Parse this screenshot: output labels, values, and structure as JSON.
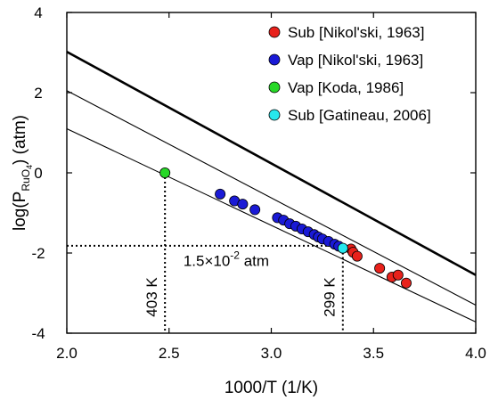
{
  "chart_data": {
    "type": "scatter",
    "xlabel": "1000/T (1/K)",
    "ylabel": "log(P",
    "ylabel_sub": "RuO",
    "ylabel_sub2": "4",
    "ylabel_tail": ") (atm)",
    "xlim": [
      2.0,
      4.0
    ],
    "ylim": [
      -4,
      4
    ],
    "xticks": [
      "2.0",
      "2.5",
      "3.0",
      "3.5",
      "4.0"
    ],
    "yticks": [
      "-4",
      "-2",
      "0",
      "2",
      "4"
    ],
    "grid": false,
    "legend_position": "top-right",
    "series": [
      {
        "name": "Sub [Nikol'ski, 1963]",
        "color": "#e8211b",
        "points": [
          [
            3.39,
            -1.9
          ],
          [
            3.4,
            -1.98
          ],
          [
            3.42,
            -2.08
          ],
          [
            3.53,
            -2.38
          ],
          [
            3.59,
            -2.6
          ],
          [
            3.62,
            -2.55
          ],
          [
            3.66,
            -2.75
          ]
        ]
      },
      {
        "name": "Vap [Nikol'ski, 1963]",
        "color": "#1a1ad6",
        "points": [
          [
            2.75,
            -0.53
          ],
          [
            2.82,
            -0.7
          ],
          [
            2.86,
            -0.78
          ],
          [
            2.92,
            -0.92
          ],
          [
            3.03,
            -1.12
          ],
          [
            3.06,
            -1.18
          ],
          [
            3.09,
            -1.27
          ],
          [
            3.12,
            -1.33
          ],
          [
            3.15,
            -1.4
          ],
          [
            3.18,
            -1.47
          ],
          [
            3.21,
            -1.54
          ],
          [
            3.23,
            -1.6
          ],
          [
            3.25,
            -1.65
          ],
          [
            3.28,
            -1.71
          ],
          [
            3.31,
            -1.78
          ],
          [
            3.33,
            -1.83
          ]
        ]
      },
      {
        "name": "Vap [Koda, 1986]",
        "color": "#27d827",
        "points": [
          [
            2.48,
            0.0
          ]
        ]
      },
      {
        "name": "Sub [Gatineau, 2006]",
        "color": "#27e8ee",
        "points": [
          [
            3.35,
            -1.88
          ]
        ]
      }
    ],
    "lines": [
      {
        "style": "thick",
        "from": [
          2.0,
          3.02
        ],
        "to": [
          4.0,
          -2.55
        ]
      },
      {
        "style": "thin",
        "from": [
          2.0,
          2.05
        ],
        "to": [
          4.0,
          -3.3
        ]
      },
      {
        "style": "thin",
        "from": [
          2.0,
          1.1
        ],
        "to": [
          4.0,
          -3.72
        ]
      }
    ],
    "guides": [
      {
        "from": [
          2.0,
          -1.82
        ],
        "to": [
          3.35,
          -1.82
        ]
      },
      {
        "from": [
          2.48,
          0.0
        ],
        "to": [
          2.48,
          -4
        ]
      },
      {
        "from": [
          3.35,
          -1.88
        ],
        "to": [
          3.35,
          -4
        ]
      }
    ],
    "annotations": [
      {
        "text": "1.5×10",
        "sup": "-2",
        "tail": " atm",
        "x": 2.57,
        "y": -2.32
      },
      {
        "text": "403 K",
        "rotated": true,
        "x": 2.44,
        "y": -3.1
      },
      {
        "text": "299 K",
        "rotated": true,
        "x": 3.31,
        "y": -3.1
      }
    ]
  }
}
